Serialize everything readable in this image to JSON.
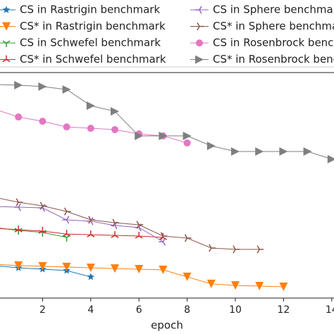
{
  "chart_data": {
    "type": "line",
    "x_label": "epoch",
    "x": [
      0,
      1,
      2,
      3,
      4,
      5,
      6,
      7,
      8,
      9,
      10,
      11,
      12,
      13,
      14
    ],
    "xlim": [
      -0.5,
      14.5
    ],
    "xticks": [
      0,
      2,
      4,
      6,
      8,
      10,
      12,
      14
    ],
    "ylim": [
      0,
      100
    ],
    "series": [
      {
        "name": "CS in Rastrigin benchmark",
        "color": "#1f77b4",
        "marker": "star",
        "values": [
          14.4,
          13.4,
          12.8,
          12.2,
          9.4,
          null,
          null,
          null,
          null,
          null,
          null,
          null,
          null,
          null,
          null
        ]
      },
      {
        "name": "CS* in Rastrigin benchmark",
        "color": "#ff7f0e",
        "marker": "triangle-down",
        "values": [
          15,
          14.4,
          14.1,
          13.8,
          13.4,
          13.1,
          12.8,
          12.5,
          9.4,
          6.3,
          5.6,
          5.3,
          5.0,
          null,
          null
        ]
      },
      {
        "name": "CS in Schwefel benchmark",
        "color": "#2ca02c",
        "marker": "tri-down",
        "values": [
          31.3,
          30,
          29.1,
          26.9,
          null,
          null,
          null,
          null,
          null,
          null,
          null,
          null,
          null,
          null,
          null
        ]
      },
      {
        "name": "CS* in Schwefel benchmark",
        "color": "#d62728",
        "marker": "tri-up",
        "values": [
          31,
          30.3,
          29.7,
          28.4,
          28.1,
          27.8,
          27.5,
          26.9,
          null,
          null,
          null,
          null,
          null,
          null,
          null
        ]
      },
      {
        "name": "CS in Sphere benchmark",
        "color": "#9467bd",
        "marker": "tri-left",
        "values": [
          40.6,
          40.3,
          40,
          34.7,
          34.1,
          32.2,
          31.3,
          25.0,
          null,
          null,
          null,
          null,
          null,
          null,
          null
        ]
      },
      {
        "name": "CS* in Sphere benchmark",
        "color": "#8c564b",
        "marker": "tri-right",
        "values": [
          44.7,
          42.5,
          40.9,
          38.4,
          34.7,
          33.4,
          32.5,
          27.5,
          26.6,
          22.2,
          21.6,
          21.6,
          null,
          null,
          null
        ]
      },
      {
        "name": "CS in Rosenbrock benchmark",
        "color": "#e377c2",
        "marker": "circle",
        "values": [
          83.8,
          80.3,
          78.4,
          75.9,
          75.3,
          74.7,
          72.8,
          71.9,
          68.8,
          null,
          null,
          null,
          null,
          null,
          null
        ]
      },
      {
        "name": "CS* in Rosenbrock benchmark",
        "color": "#7f7f7f",
        "marker": "triangle-right",
        "values": [
          94.7,
          94.4,
          93.8,
          92.5,
          85.3,
          82.8,
          71.9,
          71.9,
          71.9,
          67.5,
          65,
          65,
          65,
          65,
          61.6
        ]
      }
    ]
  }
}
